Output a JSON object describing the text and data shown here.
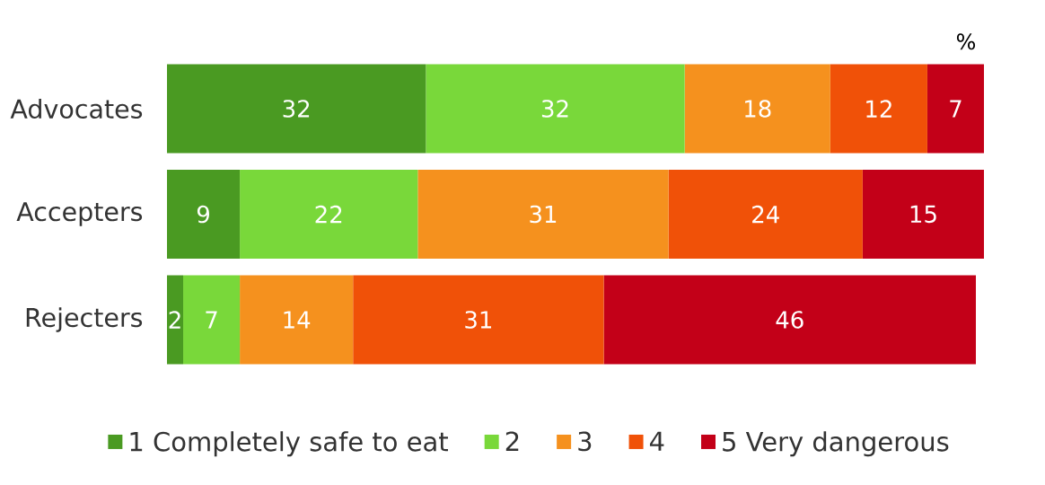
{
  "chart_data": {
    "type": "bar",
    "orientation": "horizontal",
    "stacked": true,
    "categories": [
      "Advocates",
      "Accepters",
      "Rejecters"
    ],
    "series": [
      {
        "name": "1 Completely safe to eat",
        "color": "#4a9a22",
        "values": [
          32,
          9,
          2
        ]
      },
      {
        "name": "2",
        "color": "#79d83a",
        "values": [
          32,
          22,
          7
        ]
      },
      {
        "name": "3",
        "color": "#f5911e",
        "values": [
          18,
          31,
          14
        ]
      },
      {
        "name": "4",
        "color": "#f05108",
        "values": [
          12,
          24,
          31
        ]
      },
      {
        "name": "5 Very dangerous",
        "color": "#c30018",
        "values": [
          7,
          15,
          46
        ]
      }
    ],
    "data_labels": true,
    "legend": "bottom",
    "tick_labels": "y",
    "annotations": [
      "%"
    ]
  }
}
